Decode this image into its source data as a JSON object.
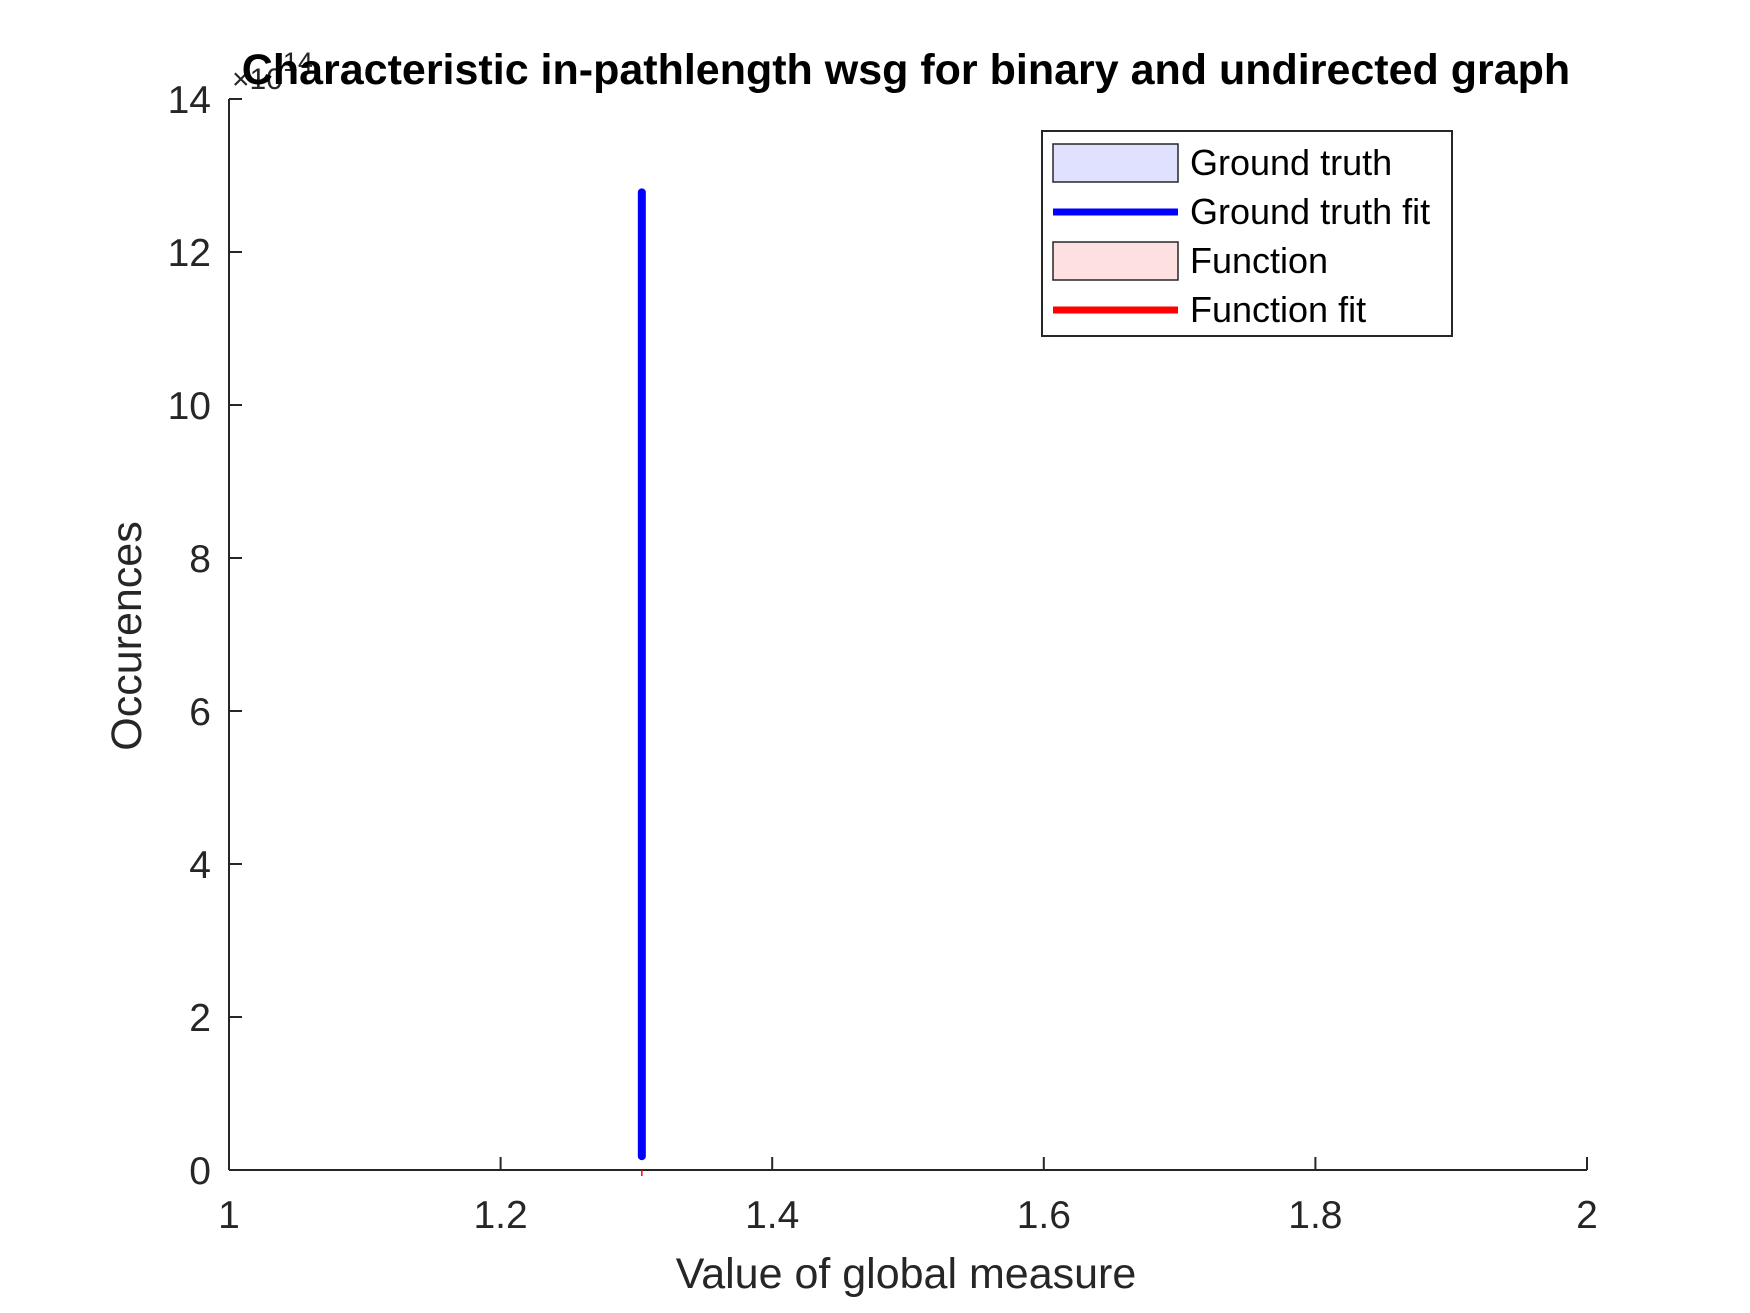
{
  "chart_data": {
    "type": "line",
    "title": "Characteristic in-pathlength wsg for binary and undirected graph",
    "xlabel": "Value of global measure",
    "ylabel": "Occurences",
    "xlim": [
      1,
      2
    ],
    "ylim": [
      0,
      14
    ],
    "y_exponent_label": "×10",
    "y_exponent_power": "14",
    "xticks": [
      "1",
      "1.2",
      "1.4",
      "1.6",
      "1.8",
      "2"
    ],
    "yticks": [
      "0",
      "2",
      "4",
      "6",
      "8",
      "10",
      "12",
      "14"
    ],
    "grid": false,
    "legend_position": "top-right",
    "series": [
      {
        "name": "Ground truth",
        "kind": "histogram",
        "color": "#E0E0FF",
        "values": []
      },
      {
        "name": "Ground truth fit",
        "kind": "line",
        "color": "#0000FF",
        "x": [
          1.304,
          1.304
        ],
        "y": [
          0.18,
          12.78
        ]
      },
      {
        "name": "Function",
        "kind": "histogram",
        "color": "#FFE0E0",
        "values": []
      },
      {
        "name": "Function fit",
        "kind": "line",
        "color": "#FF0000",
        "x": [
          1.304,
          1.304
        ],
        "y": [
          0,
          0
        ]
      }
    ]
  }
}
